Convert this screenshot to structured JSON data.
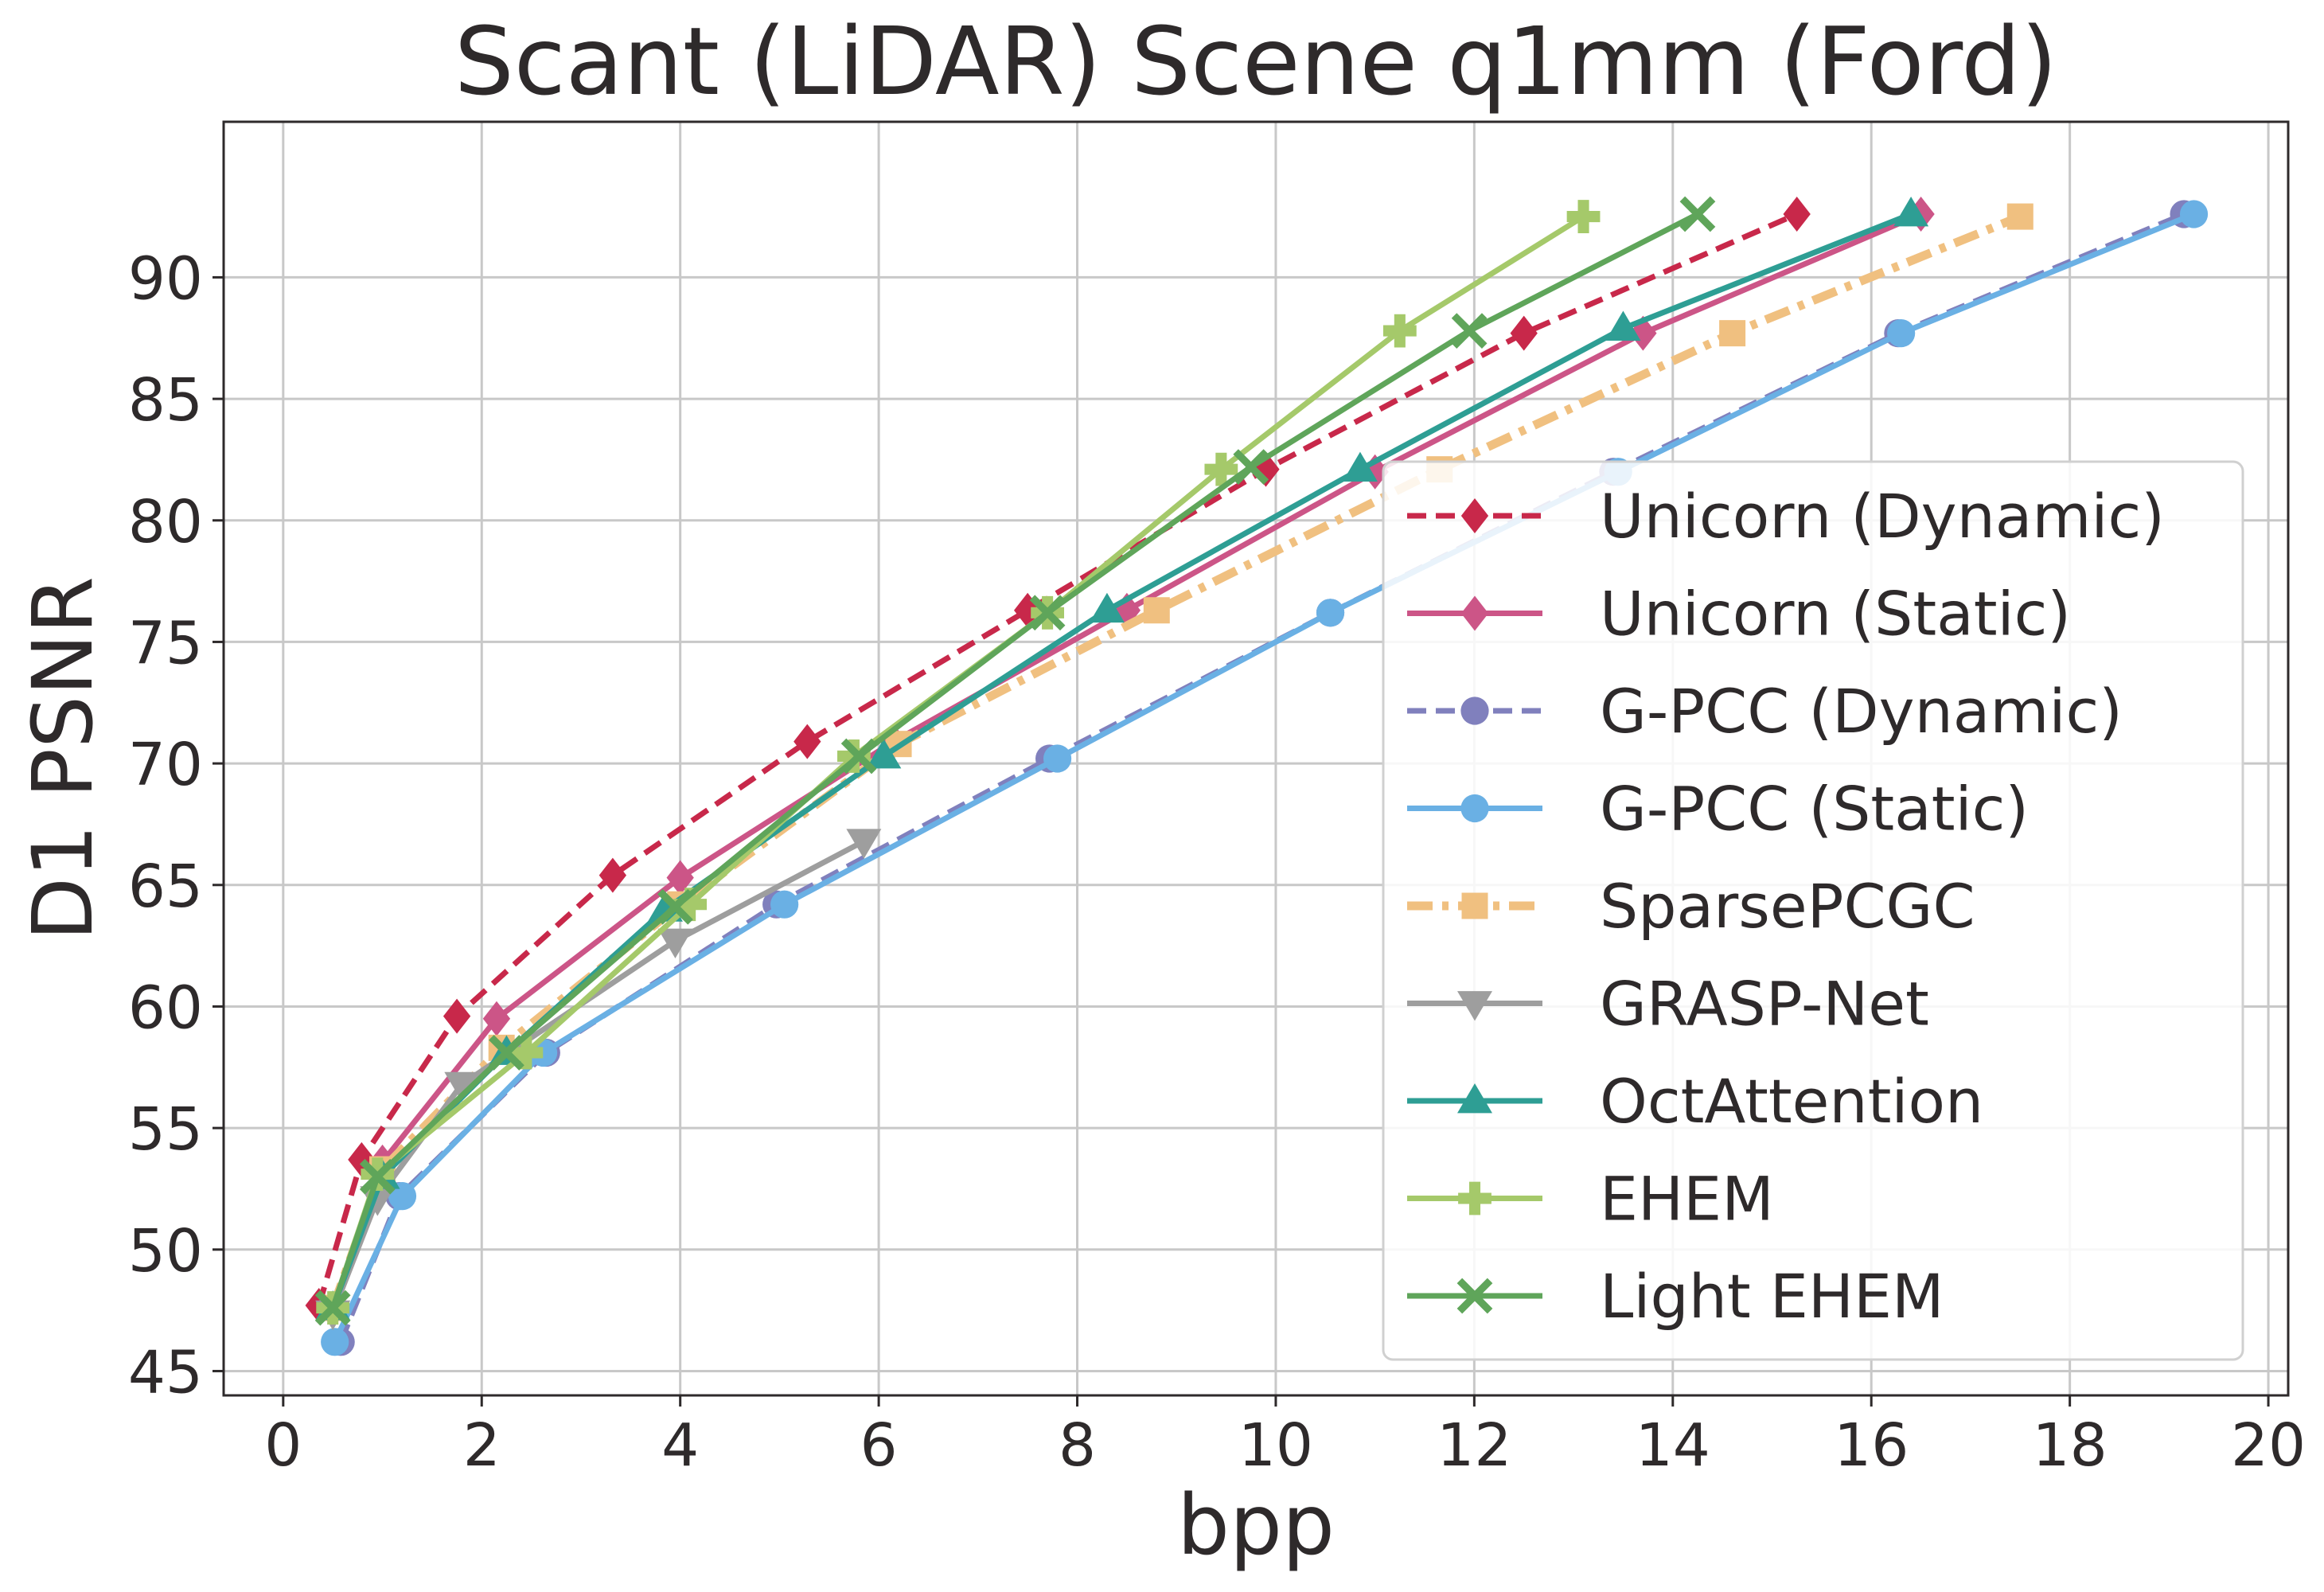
{
  "chart_data": {
    "type": "line",
    "title": "Scant (LiDAR) Scene q1mm (Ford)",
    "xlabel": "bpp",
    "ylabel": "D1 PSNR",
    "xlim": [
      -0.6,
      20.2
    ],
    "ylim": [
      44,
      96.4
    ],
    "xticks": [
      0,
      2,
      4,
      6,
      8,
      10,
      12,
      14,
      16,
      18,
      20
    ],
    "yticks": [
      45,
      50,
      55,
      60,
      65,
      70,
      75,
      80,
      85,
      90
    ],
    "grid": true,
    "legend_position": "lower-right",
    "series": [
      {
        "name": "Unicorn (Dynamic)",
        "color": "#c8284a",
        "dash": "dashed",
        "marker": "diamond",
        "x": [
          0.36,
          0.79,
          1.75,
          3.32,
          5.28,
          7.5,
          9.9,
          12.5,
          15.25
        ],
        "y": [
          47.7,
          53.7,
          59.6,
          65.4,
          70.9,
          76.3,
          82.1,
          87.7,
          92.6
        ]
      },
      {
        "name": "Unicorn (Static)",
        "color": "#cc5587",
        "dash": "solid",
        "marker": "diamond",
        "x": [
          0.5,
          1.0,
          2.15,
          4.0,
          6.15,
          8.5,
          11.0,
          13.7,
          16.5
        ],
        "y": [
          47.5,
          53.6,
          59.5,
          65.3,
          70.9,
          76.3,
          82.0,
          87.7,
          92.6
        ]
      },
      {
        "name": "G-PCC (Dynamic)",
        "color": "#8080bd",
        "dash": "dashed",
        "marker": "circle",
        "x": [
          0.58,
          1.17,
          2.65,
          4.97,
          7.72,
          10.55,
          13.4,
          16.27,
          19.15
        ],
        "y": [
          46.2,
          52.2,
          58.1,
          64.2,
          70.2,
          76.2,
          82.0,
          87.7,
          92.6
        ]
      },
      {
        "name": "G-PCC (Static)",
        "color": "#6ab0e4",
        "dash": "solid",
        "marker": "circle",
        "x": [
          0.52,
          1.2,
          2.62,
          5.05,
          7.8,
          10.55,
          13.45,
          16.3,
          19.25
        ],
        "y": [
          46.2,
          52.2,
          58.1,
          64.2,
          70.2,
          76.2,
          82.0,
          87.7,
          92.6
        ]
      },
      {
        "name": "SparsePCGC",
        "color": "#f0c080",
        "dash": "dashdot",
        "marker": "square",
        "x": [
          0.5,
          1.0,
          2.2,
          4.0,
          6.2,
          8.8,
          11.65,
          14.6,
          17.5
        ],
        "y": [
          47.6,
          53.3,
          58.3,
          64.2,
          70.8,
          76.3,
          82.1,
          87.7,
          92.5
        ]
      },
      {
        "name": "GRASP-Net",
        "color": "#9e9e9e",
        "dash": "solid",
        "marker": "triangle-down",
        "x": [
          0.5,
          0.95,
          1.8,
          3.95,
          5.85
        ],
        "y": [
          47.4,
          52.1,
          56.8,
          62.7,
          66.8
        ]
      },
      {
        "name": "OctAttention",
        "color": "#2e9e94",
        "dash": "solid",
        "marker": "triangle-up",
        "x": [
          0.5,
          1.0,
          2.25,
          3.85,
          6.05,
          8.3,
          10.85,
          13.5,
          16.4
        ],
        "y": [
          47.6,
          53.0,
          58.1,
          64.0,
          70.3,
          76.3,
          82.1,
          87.9,
          92.6
        ]
      },
      {
        "name": "EHEM",
        "color": "#a5c96a",
        "dash": "solid",
        "marker": "plus",
        "x": [
          0.5,
          0.95,
          2.45,
          4.1,
          5.75,
          7.7,
          9.45,
          11.25,
          13.1
        ],
        "y": [
          47.6,
          53.1,
          58.1,
          64.2,
          70.3,
          76.2,
          82.1,
          87.8,
          92.5
        ]
      },
      {
        "name": "Light EHEM",
        "color": "#5fa55a",
        "dash": "solid",
        "marker": "x",
        "x": [
          0.5,
          0.95,
          2.25,
          3.95,
          5.8,
          7.7,
          9.75,
          11.95,
          14.25
        ],
        "y": [
          47.6,
          53.0,
          58.1,
          64.1,
          70.3,
          76.2,
          82.2,
          87.8,
          92.6
        ]
      }
    ]
  }
}
